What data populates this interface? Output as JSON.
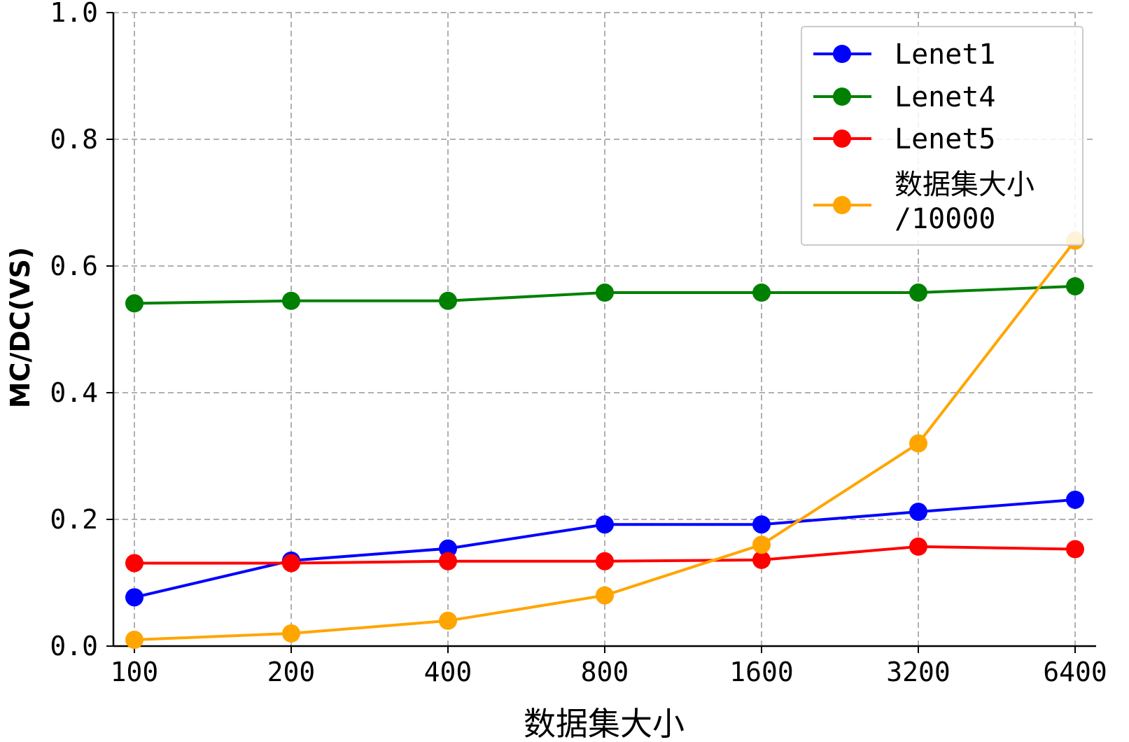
{
  "chart_data": {
    "type": "line",
    "xlabel": "数据集大小",
    "ylabel": "MC/DC(VS)",
    "categories": [
      "100",
      "200",
      "400",
      "800",
      "1600",
      "3200",
      "6400"
    ],
    "y_ticks": [
      "0.0",
      "0.2",
      "0.4",
      "0.6",
      "0.8",
      "1.0"
    ],
    "ylim": [
      0.0,
      1.0
    ],
    "x_scale": "log2",
    "grid": true,
    "grid_style": "dashed",
    "legend_position": "top-right",
    "series": [
      {
        "name": "Lenet1",
        "color": "#0000ff",
        "values": [
          0.077,
          0.135,
          0.154,
          0.192,
          0.192,
          0.212,
          0.231
        ]
      },
      {
        "name": "Lenet4",
        "color": "#008000",
        "values": [
          0.541,
          0.545,
          0.545,
          0.558,
          0.558,
          0.558,
          0.568
        ]
      },
      {
        "name": "Lenet5",
        "color": "#ff0000",
        "values": [
          0.131,
          0.131,
          0.134,
          0.134,
          0.136,
          0.157,
          0.153
        ]
      },
      {
        "name_lines": [
          "数据集大小",
          "/10000"
        ],
        "color": "#ffa500",
        "values": [
          0.01,
          0.02,
          0.04,
          0.08,
          0.16,
          0.32,
          0.64
        ]
      }
    ]
  }
}
